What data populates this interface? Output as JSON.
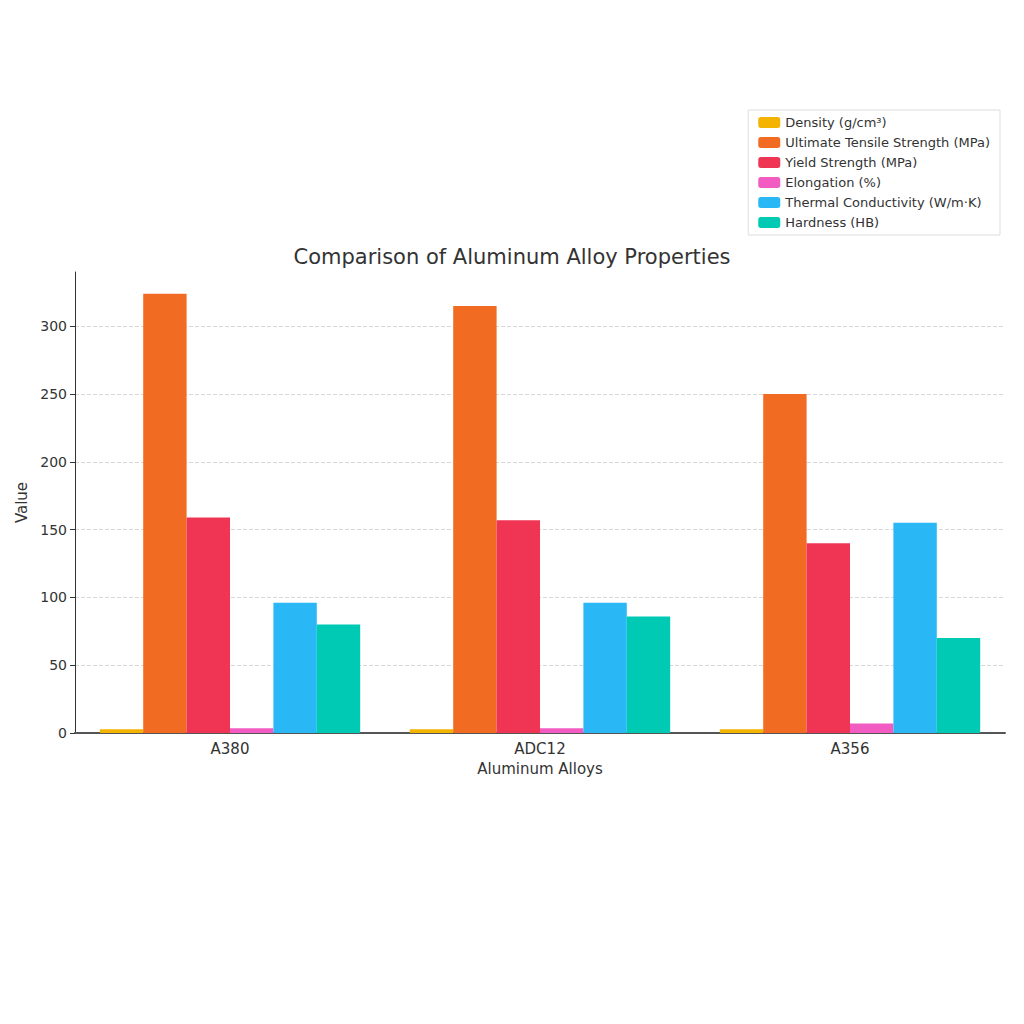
{
  "chart_data": {
    "type": "bar",
    "title": "Comparison of Aluminum Alloy Properties",
    "x_label": "Aluminum Alloys",
    "y_label": "Value",
    "categories": [
      "A380",
      "ADC12",
      "A356"
    ],
    "series": [
      {
        "name": "Density (g/cm³)",
        "color": "#f5b301",
        "values": [
          2.7,
          2.7,
          2.7
        ]
      },
      {
        "name": "Ultimate Tensile Strength (MPa)",
        "color": "#f26b22",
        "values": [
          324,
          315,
          250
        ]
      },
      {
        "name": "Yield Strength (MPa)",
        "color": "#ef3454",
        "values": [
          159,
          157,
          140
        ]
      },
      {
        "name": "Elongation (%)",
        "color": "#f25cc2",
        "values": [
          3.5,
          3.5,
          7
        ]
      },
      {
        "name": "Thermal Conductivity (W/m·K)",
        "color": "#29b8f5",
        "values": [
          96,
          96,
          155
        ]
      },
      {
        "name": "Hardness (HB)",
        "color": "#00c9b4",
        "values": [
          80,
          86,
          70
        ]
      }
    ],
    "ylim": [
      0,
      340
    ],
    "yticks": [
      0,
      50,
      100,
      150,
      200,
      250,
      300
    ],
    "grid": true,
    "legend": "upper right"
  }
}
